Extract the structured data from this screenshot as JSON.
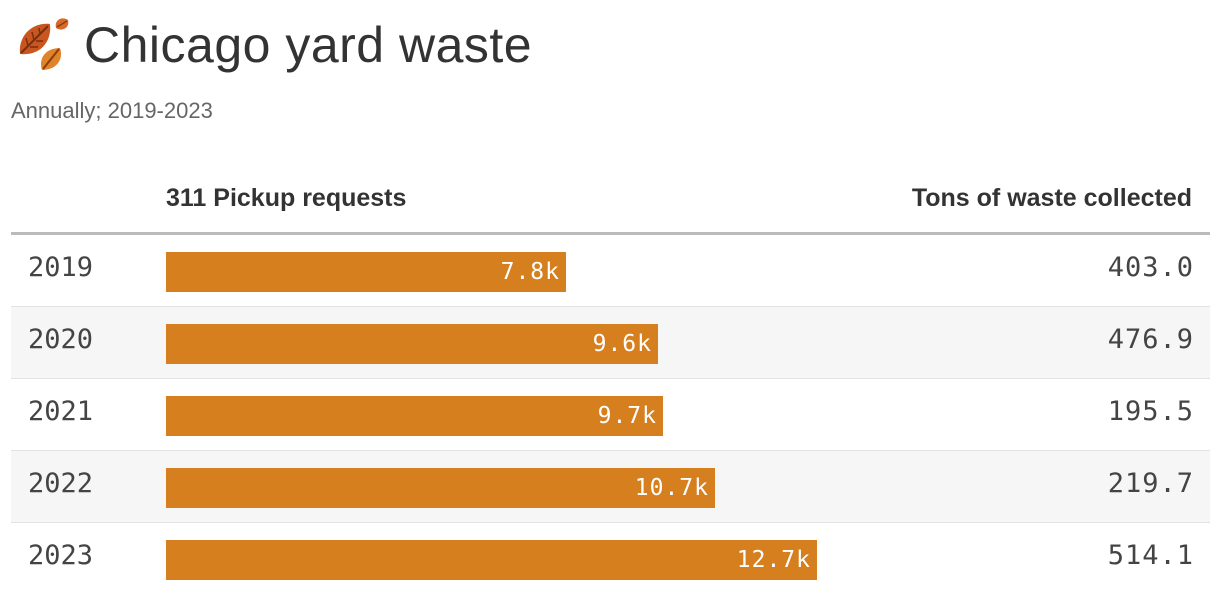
{
  "header": {
    "title": "Chicago yard waste",
    "subtitle": "Annually; 2019-2023",
    "icon": "fallen-leaves-icon"
  },
  "columns": {
    "bars": "311 Pickup requests",
    "tons": "Tons of waste collected"
  },
  "colors": {
    "bar": "#d67f1f",
    "rule": "#bbbbbb",
    "alt_row": "#f6f6f6"
  },
  "chart_data": {
    "type": "bar",
    "orientation": "horizontal",
    "title": "Chicago yard waste",
    "subtitle": "Annually; 2019-2023",
    "categories": [
      "2019",
      "2020",
      "2021",
      "2022",
      "2023"
    ],
    "series": [
      {
        "name": "311 Pickup requests",
        "values": [
          7800,
          9600,
          9700,
          10700,
          12700
        ],
        "labels": [
          "7.8k",
          "9.6k",
          "9.7k",
          "10.7k",
          "12.7k"
        ]
      },
      {
        "name": "Tons of waste collected",
        "values": [
          403.0,
          476.9,
          195.5,
          219.7,
          514.1
        ],
        "labels": [
          "403.0",
          "476.9",
          "195.5",
          "219.7",
          "514.1"
        ]
      }
    ],
    "xlim": [
      0,
      19500
    ]
  }
}
